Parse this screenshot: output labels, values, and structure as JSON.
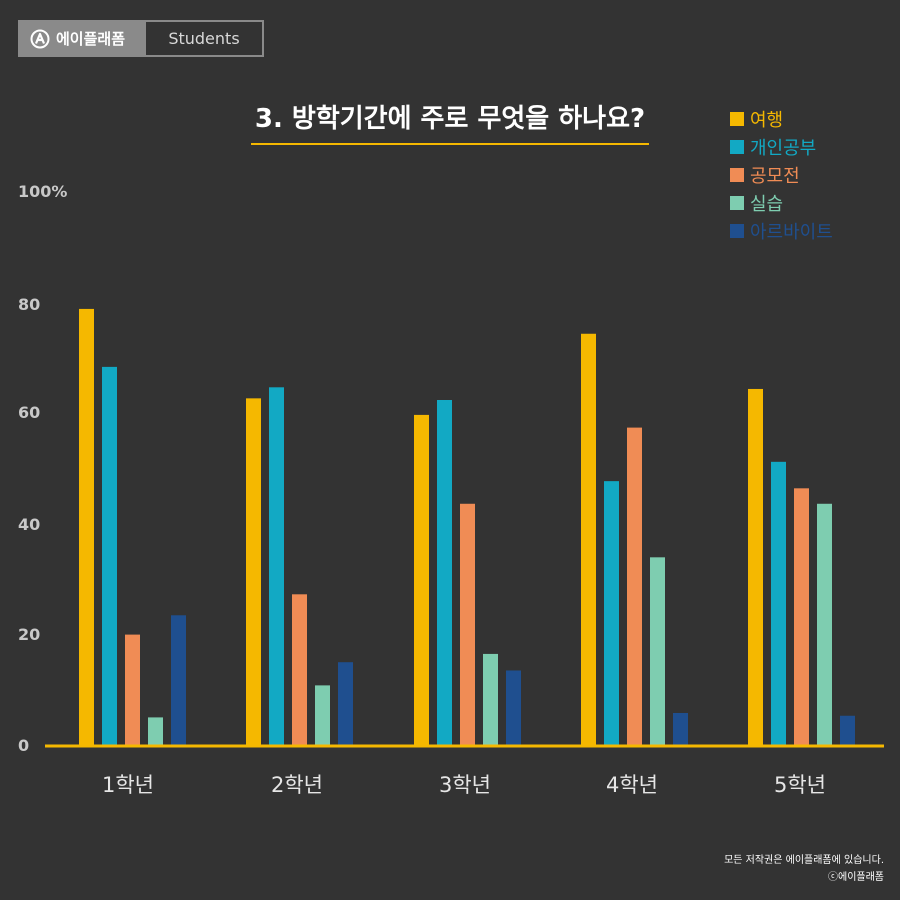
{
  "brand": {
    "name": "에이플래폼",
    "section": "Students",
    "logo_icon": "circle-a-logo-icon"
  },
  "footer": {
    "rights": "모든 저작권은 에이플래폼에 있습니다.",
    "copyright": "ⓒ에이플래폼"
  },
  "colors": {
    "background": "#333333",
    "axis": "#f5b800"
  },
  "chart_data": {
    "type": "bar",
    "title": "3. 방학기간에 주로 무엇을 하나요?",
    "categories": [
      "1학년",
      "2학년",
      "3학년",
      "4학년",
      "5학년"
    ],
    "ylim": [
      0,
      100
    ],
    "y_ticks": [
      "0",
      "20",
      "40",
      "60",
      "80",
      "100%"
    ],
    "legend_position": "top-right",
    "series": [
      {
        "name": "여행",
        "color": "#f5b800",
        "values": [
          79,
          62.8,
          59.8,
          74.5,
          64.5
        ]
      },
      {
        "name": "개인공부",
        "color": "#12a9c4",
        "values": [
          68.5,
          64.8,
          62.5,
          47.8,
          51.3
        ]
      },
      {
        "name": "공모전",
        "color": "#f08c55",
        "values": [
          20,
          27.3,
          43.7,
          57.5,
          46.5
        ]
      },
      {
        "name": "실습",
        "color": "#7ecdb0",
        "values": [
          5,
          10.8,
          16.5,
          34,
          43.7
        ]
      },
      {
        "name": "아르바이트",
        "color": "#1f4f8f",
        "values": [
          23.5,
          15,
          13.5,
          5.8,
          5.3
        ]
      }
    ]
  }
}
